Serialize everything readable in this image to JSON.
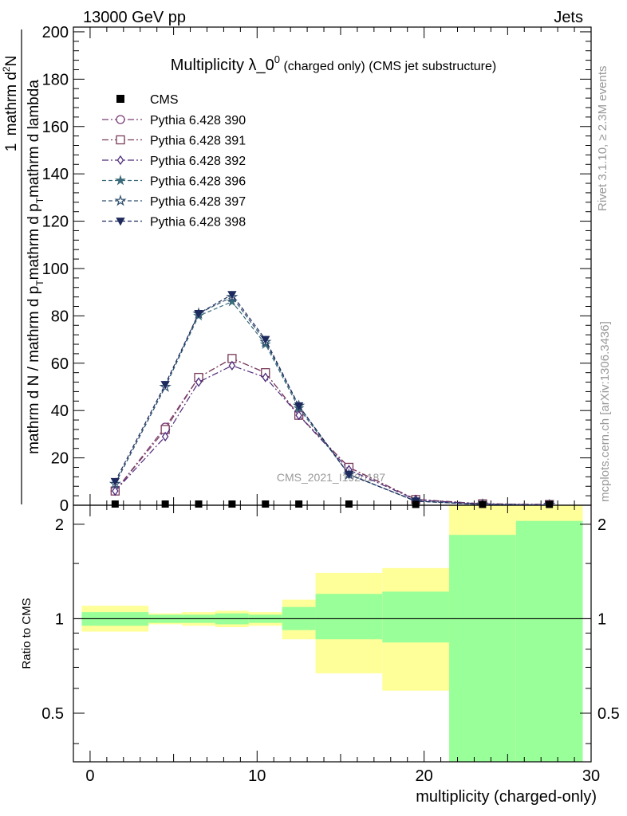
{
  "header": {
    "left": "13000 GeV pp",
    "right": "Jets"
  },
  "side_texts": {
    "events": "Rivet 3.1.10, ≥ 2.3M events",
    "source": "mcplots.cern.ch [arXiv:1306.3436]"
  },
  "watermark": "CMS_2021_I1920187",
  "chart_data": [
    {
      "type": "line",
      "title": "Multiplicity λ_0",
      "title_sup": "0",
      "title_suffix": " (charged only) (CMS jet substructure)",
      "ylabel_numerator": "1",
      "ylabel_denominator_main": "mathrm d N / mathrm d p",
      "ylabel_denominator_sub": "T",
      "ylabel_denominator_rest": "mathrm d p",
      "ylabel_denominator_sub2": "T",
      "ylabel_denominator_end": "mathrm d lambda",
      "ylabel_numerator_full": "mathrm d",
      "ylabel_numerator_sup": "2",
      "ylabel_numerator_end": "N",
      "xlim": [
        -1,
        30
      ],
      "ylim": [
        0,
        202
      ],
      "yticks": [
        0,
        20,
        40,
        60,
        80,
        100,
        120,
        140,
        160,
        180,
        200
      ],
      "yticklabels": [
        "0",
        "20",
        "40",
        "60",
        "80",
        "100",
        "120",
        "140",
        "160",
        "180",
        "200"
      ],
      "legend_position": "top-left",
      "cms": {
        "name": "CMS",
        "x": [
          1.5,
          4.5,
          6.5,
          8.5,
          10.5,
          12.5,
          15.5,
          19.5,
          23.5,
          27.5
        ],
        "y": [
          0.5,
          0.5,
          0.5,
          0.5,
          0.5,
          0.5,
          0.5,
          0.3,
          0.2,
          0.1
        ]
      },
      "x": [
        1.5,
        4.5,
        6.5,
        8.5,
        10.5,
        12.5,
        15.5,
        19.5,
        23.5,
        27.5
      ],
      "series": [
        {
          "name": "Pythia 6.428 390",
          "color": "#7a3c76",
          "marker": "circle-open",
          "dash": "8,3,2,3",
          "values": [
            6,
            33,
            54,
            62,
            56,
            38,
            16,
            2.5,
            0.6,
            0.3
          ]
        },
        {
          "name": "Pythia 6.428 391",
          "color": "#7a3c5a",
          "marker": "square-open",
          "dash": "8,3,2,3",
          "values": [
            6,
            32,
            54,
            62,
            56,
            38,
            16,
            2.4,
            0.6,
            0.3
          ]
        },
        {
          "name": "Pythia 6.428 392",
          "color": "#4e2a7a",
          "marker": "diamond-open",
          "dash": "8,3,2,3",
          "values": [
            6,
            29,
            52,
            59,
            54,
            38,
            15,
            2.3,
            0.5,
            0.2
          ]
        },
        {
          "name": "Pythia 6.428 396",
          "color": "#3a6a7a",
          "marker": "star-filled",
          "dash": "5,3",
          "values": [
            9,
            50,
            80,
            86,
            68,
            41,
            13,
            1.8,
            0.3,
            0.1
          ]
        },
        {
          "name": "Pythia 6.428 397",
          "color": "#2e4f6e",
          "marker": "star-open",
          "dash": "5,3",
          "values": [
            9,
            50,
            81,
            88,
            69,
            42,
            13,
            1.7,
            0.3,
            0.1
          ]
        },
        {
          "name": "Pythia 6.428 398",
          "color": "#1e2a5e",
          "marker": "triangle-down-filled",
          "dash": "5,3",
          "values": [
            10,
            51,
            81,
            89,
            70,
            42,
            13,
            1.8,
            0.3,
            0.1
          ]
        }
      ]
    },
    {
      "type": "area",
      "ylabel": "Ratio to CMS",
      "xlabel": "multiplicity (charged-only)",
      "xlim": [
        -1,
        30
      ],
      "ylim": [
        0.35,
        2.3
      ],
      "xticks": [
        0,
        10,
        20,
        30
      ],
      "xticklabels": [
        "0",
        "10",
        "20",
        "30"
      ],
      "yticks": [
        0.5,
        1,
        2
      ],
      "yticklabels": [
        "0.5",
        "1",
        "2"
      ],
      "reference": 1,
      "bins": [
        {
          "lo": -0.5,
          "hi": 3.5,
          "green": [
            0.95,
            1.05
          ],
          "yellow": [
            0.91,
            1.1
          ]
        },
        {
          "lo": 3.5,
          "hi": 5.5,
          "green": [
            0.97,
            1.03
          ],
          "yellow": [
            0.96,
            1.04
          ]
        },
        {
          "lo": 5.5,
          "hi": 7.5,
          "green": [
            0.97,
            1.03
          ],
          "yellow": [
            0.95,
            1.05
          ]
        },
        {
          "lo": 7.5,
          "hi": 9.5,
          "green": [
            0.96,
            1.04
          ],
          "yellow": [
            0.94,
            1.06
          ]
        },
        {
          "lo": 9.5,
          "hi": 11.5,
          "green": [
            0.97,
            1.03
          ],
          "yellow": [
            0.95,
            1.05
          ]
        },
        {
          "lo": 11.5,
          "hi": 13.5,
          "green": [
            0.92,
            1.09
          ],
          "yellow": [
            0.86,
            1.15
          ]
        },
        {
          "lo": 13.5,
          "hi": 17.5,
          "green": [
            0.86,
            1.2
          ],
          "yellow": [
            0.67,
            1.4
          ]
        },
        {
          "lo": 17.5,
          "hi": 21.5,
          "green": [
            0.84,
            1.22
          ],
          "yellow": [
            0.59,
            1.45
          ]
        },
        {
          "lo": 21.5,
          "hi": 25.5,
          "green": [
            0.35,
            1.85
          ],
          "yellow": [
            0.35,
            2.3
          ]
        },
        {
          "lo": 25.5,
          "hi": 29.5,
          "green": [
            0.35,
            2.05
          ],
          "yellow": [
            0.35,
            2.3
          ]
        }
      ]
    }
  ]
}
